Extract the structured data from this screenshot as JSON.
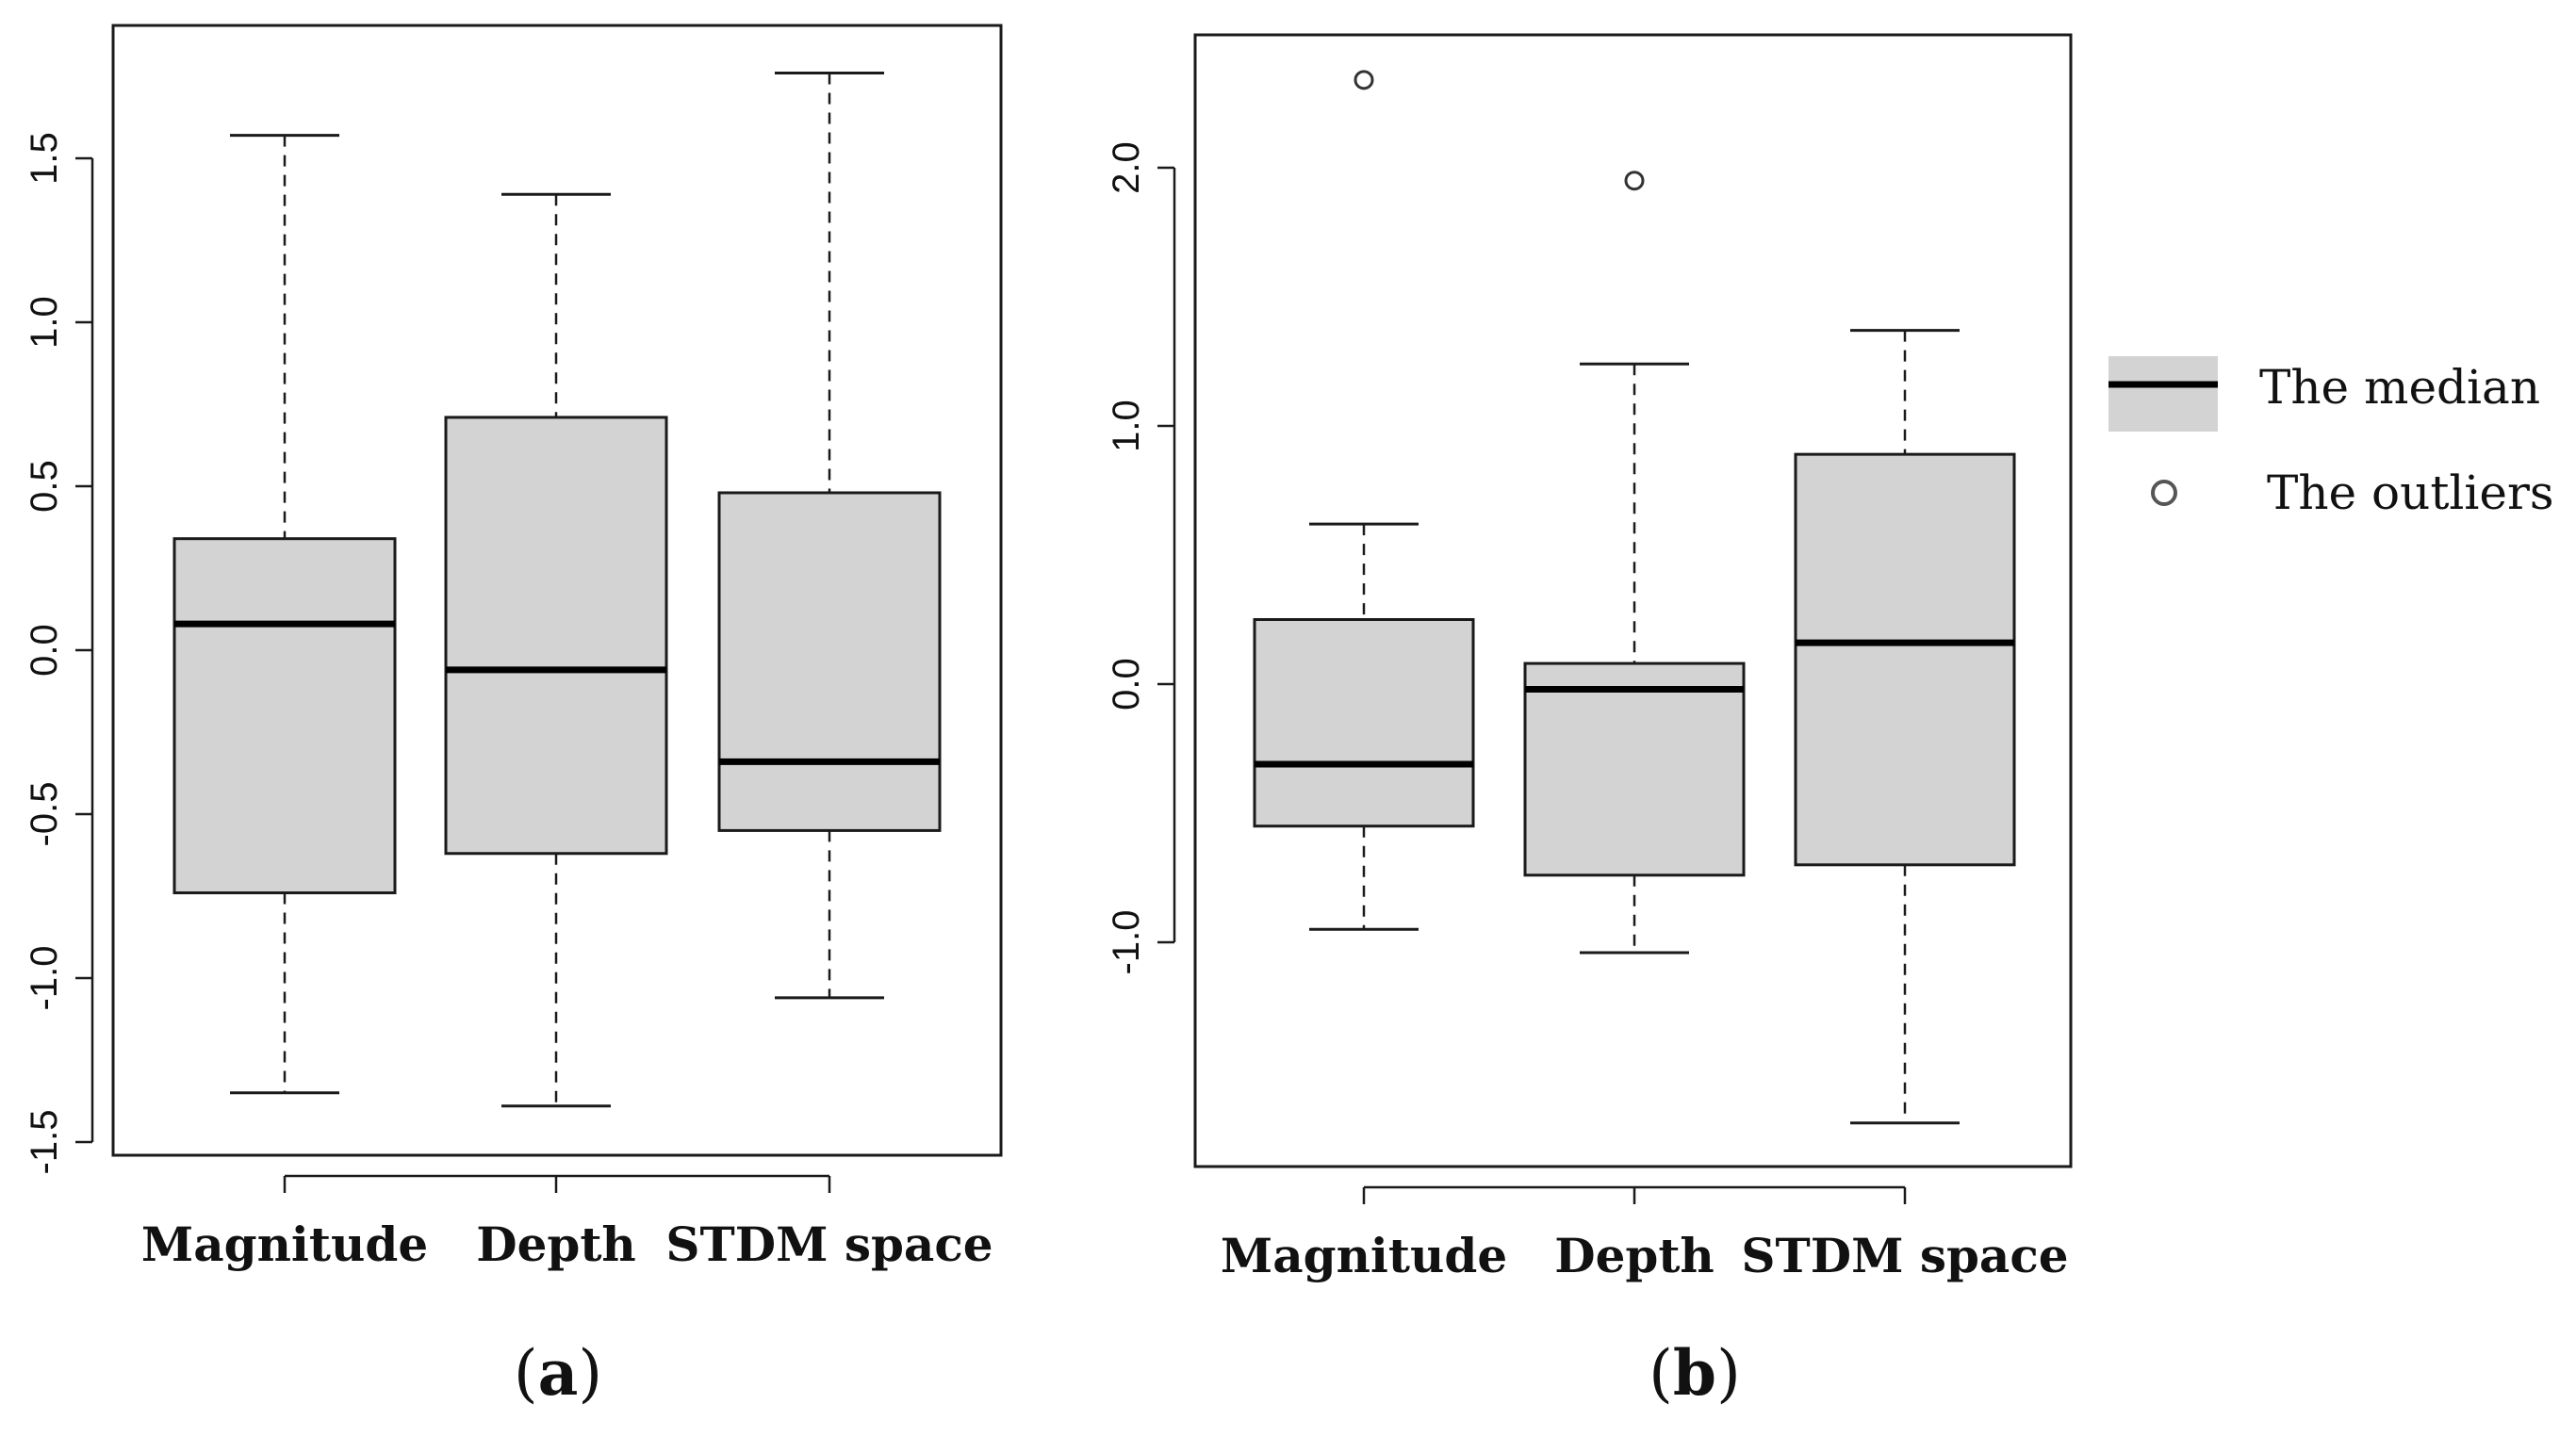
{
  "chart_data": [
    {
      "type": "boxplot",
      "panel_caption": {
        "open": "(",
        "letter": "a",
        "close": ")"
      },
      "categories": [
        "Magnitude",
        "Depth",
        "STDM space"
      ],
      "ylim": [
        -1.5,
        1.75
      ],
      "yticks": [
        -1.5,
        -1.0,
        -0.5,
        0.0,
        0.5,
        1.0,
        1.5
      ],
      "ytick_labels": [
        "-1.5",
        "-1.0",
        "-0.5",
        "0.0",
        "0.5",
        "1.0",
        "1.5"
      ],
      "boxes": [
        {
          "name": "Magnitude",
          "whisker_low": -1.35,
          "q1": -0.74,
          "median": 0.08,
          "q3": 0.34,
          "whisker_high": 1.57,
          "outliers": []
        },
        {
          "name": "Depth",
          "whisker_low": -1.39,
          "q1": -0.62,
          "median": -0.06,
          "q3": 0.71,
          "whisker_high": 1.39,
          "outliers": []
        },
        {
          "name": "STDM space",
          "whisker_low": -1.06,
          "q1": -0.55,
          "median": -0.34,
          "q3": 0.48,
          "whisker_high": 1.76,
          "outliers": []
        }
      ]
    },
    {
      "type": "boxplot",
      "panel_caption": {
        "open": "(",
        "letter": "b",
        "close": ")"
      },
      "categories": [
        "Magnitude",
        "Depth",
        "STDM space"
      ],
      "ylim": [
        -1.85,
        2.45
      ],
      "yticks": [
        -1.0,
        0.0,
        1.0,
        2.0
      ],
      "ytick_labels": [
        "-1.0",
        "0.0",
        "1.0",
        "2.0"
      ],
      "boxes": [
        {
          "name": "Magnitude",
          "whisker_low": -0.95,
          "q1": -0.55,
          "median": -0.31,
          "q3": 0.25,
          "whisker_high": 0.62,
          "outliers": [
            2.34
          ]
        },
        {
          "name": "Depth",
          "whisker_low": -1.04,
          "q1": -0.74,
          "median": -0.02,
          "q3": 0.08,
          "whisker_high": 1.24,
          "outliers": [
            1.95
          ]
        },
        {
          "name": "STDM space",
          "whisker_low": -1.7,
          "q1": -0.7,
          "median": 0.16,
          "q3": 0.89,
          "whisker_high": 1.37,
          "outliers": []
        }
      ]
    }
  ],
  "legend": {
    "median_label": "The median",
    "outlier_label": "The outliers"
  },
  "colors": {
    "box_fill": "#d3d3d3",
    "stroke": "#1a1a1a",
    "median": "#000000"
  }
}
